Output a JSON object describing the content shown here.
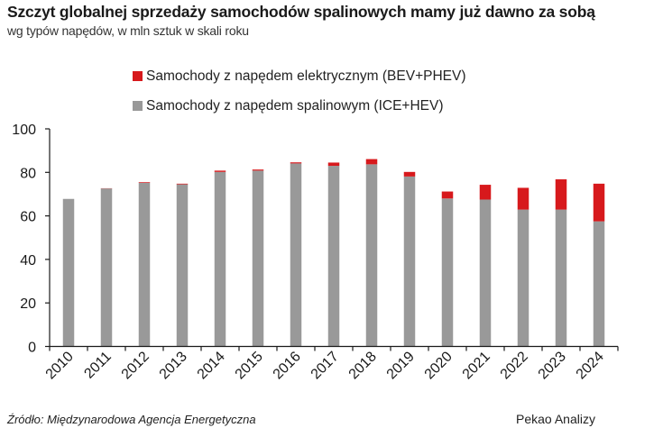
{
  "header": {
    "title": "Szczyt globalnej sprzedaży samochodów spalinowych mamy już dawno za sobą",
    "subtitle": "wg typów napędów, w mln sztuk w skali roku"
  },
  "footer": {
    "source": "Źródło: Międzynarodowa Agencja Energetyczna",
    "brand": "Pekao Analizy"
  },
  "colors": {
    "electric": "#d7191c",
    "combustion": "#999999",
    "axis": "#1a1a1a"
  },
  "chart_data": {
    "type": "bar",
    "stacked": true,
    "title": "Szczyt globalnej sprzedaży samochodów spalinowych mamy już dawno za sobą",
    "subtitle": "wg typów napędów, w mln sztuk w skali roku",
    "xlabel": "",
    "ylabel": "",
    "ylim": [
      0,
      100
    ],
    "yticks": [
      0,
      20,
      40,
      60,
      80,
      100
    ],
    "grid": false,
    "legend_position": "top",
    "categories": [
      "2010",
      "2011",
      "2012",
      "2013",
      "2014",
      "2015",
      "2016",
      "2017",
      "2018",
      "2019",
      "2020",
      "2021",
      "2022",
      "2023",
      "2024"
    ],
    "series": [
      {
        "name": "Samochody z napędem spalinowym (ICE+HEV)",
        "color": "#999999",
        "values": [
          67.8,
          72.6,
          75.2,
          74.5,
          80.2,
          80.8,
          84.1,
          83.0,
          83.7,
          78.1,
          68.0,
          67.5,
          62.9,
          62.9,
          57.5
        ]
      },
      {
        "name": "Samochody z napędem elektrycznym (BEV+PHEV)",
        "color": "#d7191c",
        "values": [
          0.0,
          0.1,
          0.3,
          0.3,
          0.6,
          0.5,
          0.5,
          1.5,
          2.4,
          2.1,
          3.2,
          6.8,
          10.0,
          13.9,
          17.3
        ]
      }
    ],
    "legend": [
      {
        "label": "Samochody z napędem elektrycznym (BEV+PHEV)",
        "color": "#d7191c"
      },
      {
        "label": "Samochody z napędem spalinowym (ICE+HEV)",
        "color": "#999999"
      }
    ]
  }
}
